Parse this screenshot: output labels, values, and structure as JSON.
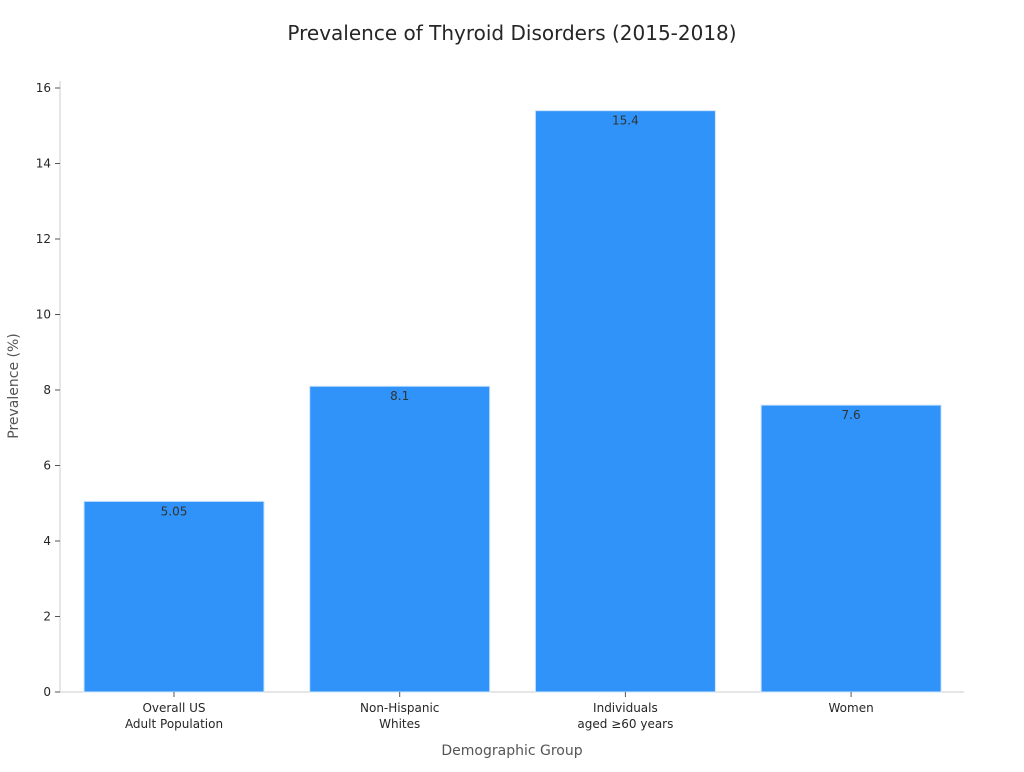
{
  "chart_data": {
    "type": "bar",
    "title": "Prevalence of Thyroid Disorders (2015-2018)",
    "xlabel": "Demographic Group",
    "ylabel": "Prevalence (%)",
    "categories": [
      [
        "Overall US",
        "Adult Population"
      ],
      [
        "Non-Hispanic",
        "Whites"
      ],
      [
        "Individuals",
        "aged ≥60 years"
      ],
      [
        "Women"
      ]
    ],
    "values": [
      5.05,
      8.1,
      15.4,
      7.6
    ],
    "data_labels": [
      "5.05",
      "8.1",
      "15.4",
      "7.6"
    ],
    "ylim": [
      0,
      16.2
    ],
    "yticks": [
      0,
      2,
      4,
      6,
      8,
      10,
      12,
      14,
      16
    ],
    "grid": false,
    "bar_color": "#2f93fa"
  }
}
